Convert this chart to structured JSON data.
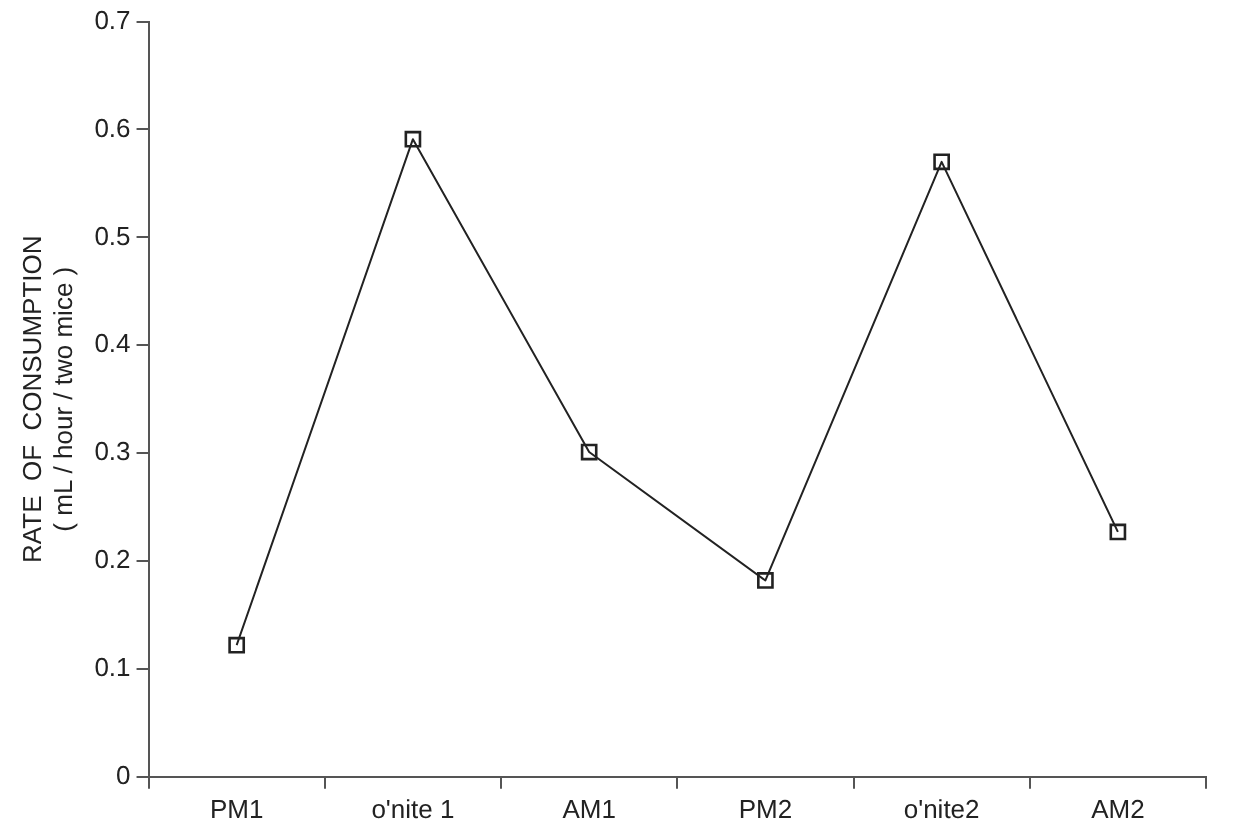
{
  "chart_data": {
    "type": "line",
    "ylabel": "RATE  OF  CONSUMPTION\n( mL / hour / two mice )",
    "categories": [
      "PM1",
      "o'nite 1",
      "AM1",
      "PM2",
      "o'nite2",
      "AM2"
    ],
    "series": [
      {
        "color": "#222222",
        "values": [
          0.122,
          0.591,
          0.301,
          0.182,
          0.57,
          0.227
        ]
      }
    ],
    "ylim": [
      0,
      0.7
    ],
    "yticks": [
      0,
      0.1,
      0.2,
      0.3,
      0.4,
      0.5,
      0.6,
      0.7
    ],
    "marker": "square",
    "line_style": "solid",
    "grid": false,
    "legend": false
  }
}
